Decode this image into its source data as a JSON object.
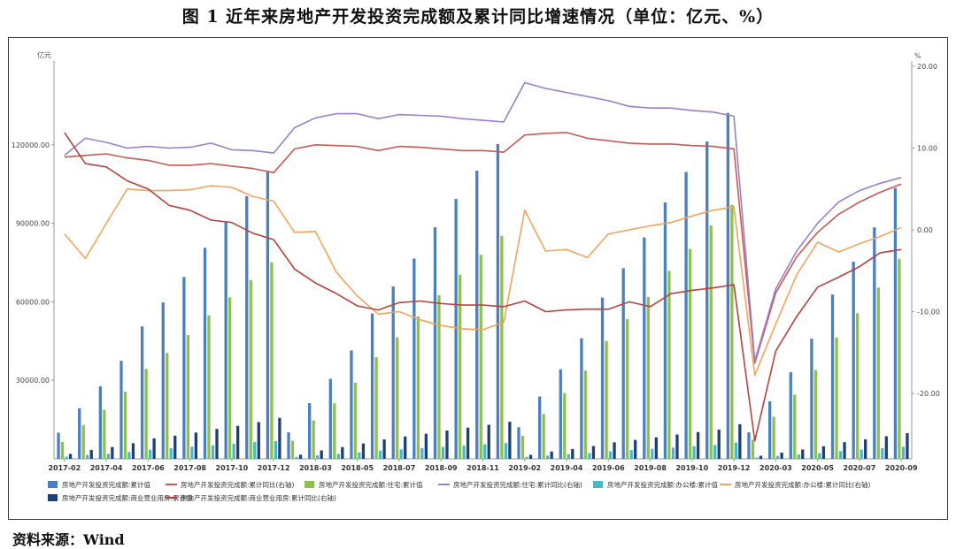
{
  "title": "图 1   近年来房地产开发投资完成额及累计同比增速情况（单位：亿元、%）",
  "source": "资料来源：Wind",
  "chart_data": {
    "type": "bar+line",
    "left_axis_unit": "亿元",
    "right_axis_unit": "%",
    "left_ylim": [
      0,
      150000
    ],
    "left_ticks": [
      "30000.00",
      "60000.00",
      "90000.00",
      "120000.00"
    ],
    "right_ylim": [
      -28,
      20
    ],
    "right_ticks": [
      "-20.00",
      "-10.00",
      "0.00",
      "10.00",
      "20.00"
    ],
    "grid": false,
    "legend_position": "bottom",
    "categories": [
      "2017-02",
      "2017-03",
      "2017-04",
      "2017-05",
      "2017-06",
      "2017-07",
      "2017-08",
      "2017-09",
      "2017-10",
      "2017-11",
      "2017-12",
      "2018-02",
      "2018-03",
      "2018-04",
      "2018-05",
      "2018-06",
      "2018-07",
      "2018-08",
      "2018-09",
      "2018-10",
      "2018-11",
      "2018-12",
      "2019-02",
      "2019-03",
      "2019-04",
      "2019-05",
      "2019-06",
      "2019-07",
      "2019-08",
      "2019-09",
      "2019-10",
      "2019-11",
      "2019-12",
      "2020-02",
      "2020-03",
      "2020-04",
      "2020-05",
      "2020-06",
      "2020-07",
      "2020-08",
      "2020-09"
    ],
    "x_tick_labels": [
      "2017-02",
      "2017-04",
      "2017-06",
      "2017-08",
      "2017-10",
      "2017-12",
      "2018-03",
      "2018-05",
      "2018-07",
      "2018-09",
      "2018-11",
      "2019-02",
      "2019-04",
      "2019-06",
      "2019-08",
      "2019-10",
      "2019-12",
      "2020-03",
      "2020-05",
      "2020-07",
      "2020-09"
    ],
    "bar_series": [
      {
        "name": "房地产开发投资完成额:累计值",
        "color": "#4a7fc1",
        "values": [
          9978,
          19292,
          27732,
          37470,
          50610,
          59761,
          69494,
          80644,
          90544,
          100387,
          109799,
          10115,
          21291,
          30592,
          41420,
          55531,
          65818,
          76519,
          88487,
          99325,
          110083,
          120264,
          12090,
          23803,
          34217,
          46075,
          61609,
          72843,
          84589,
          98008,
          109603,
          121265,
          132194,
          10115,
          21963,
          33103,
          45920,
          62780,
          75325,
          88454,
          103484
        ]
      },
      {
        "name": "房地产开发投资完成额:住宅:累计值",
        "color": "#8dc04c",
        "values": [
          6441,
          12902,
          18755,
          25653,
          34350,
          40483,
          47264,
          54804,
          61669,
          68319,
          75148,
          6926,
          14695,
          21198,
          29053,
          38839,
          46464,
          54428,
          62539,
          70365,
          77910,
          85192,
          8772,
          17147,
          25178,
          33726,
          44995,
          53410,
          61860,
          71800,
          80202,
          89200,
          97071,
          7306,
          16088,
          24533,
          33936,
          46350,
          55649,
          65454,
          76419
        ]
      },
      {
        "name": "房地产开发投资完成额:办公楼:累计值",
        "color": "#4bb8c9",
        "values": [
          863,
          1490,
          1917,
          2597,
          3451,
          4012,
          4620,
          5198,
          5795,
          6383,
          6761,
          730,
          1334,
          1895,
          2457,
          3138,
          3639,
          4117,
          4600,
          5080,
          5518,
          5996,
          707,
          1254,
          1721,
          2185,
          2850,
          3332,
          3824,
          4328,
          4814,
          5300,
          6163,
          510,
          1120,
          1652,
          2187,
          2948,
          3493,
          4082,
          4602
        ]
      },
      {
        "name": "房地产开发投资完成额:商业营业用房:累计值",
        "color": "#1f3f78",
        "values": [
          1870,
          3384,
          4495,
          5960,
          7820,
          8853,
          10030,
          11441,
          12586,
          14040,
          15640,
          1568,
          3226,
          4491,
          5873,
          7395,
          8549,
          9580,
          10808,
          11925,
          13005,
          14177,
          1522,
          2776,
          3752,
          4882,
          6303,
          7219,
          8223,
          9299,
          10227,
          11184,
          13226,
          1164,
          2382,
          3544,
          4811,
          6368,
          7439,
          8645,
          9802
        ]
      }
    ],
    "line_series": [
      {
        "name": "房地产开发投资完成额:累计同比(右轴)",
        "color": "#c85a54",
        "values": [
          8.9,
          9.1,
          9.3,
          8.8,
          8.5,
          7.9,
          7.9,
          8.1,
          7.8,
          7.5,
          7.0,
          9.9,
          10.4,
          10.3,
          10.2,
          9.7,
          10.2,
          10.1,
          9.9,
          9.7,
          9.7,
          9.5,
          11.6,
          11.8,
          11.9,
          11.2,
          10.9,
          10.6,
          10.5,
          10.5,
          10.3,
          10.2,
          9.9,
          -16.3,
          -7.7,
          -3.3,
          -0.3,
          1.9,
          3.4,
          4.6,
          5.6
        ]
      },
      {
        "name": "房地产开发投资完成额:住宅:累计同比(右轴)",
        "color": "#9c7fc7",
        "values": [
          9.1,
          11.2,
          10.7,
          10.0,
          10.2,
          10.0,
          10.1,
          10.6,
          9.8,
          9.7,
          9.4,
          12.5,
          13.7,
          14.2,
          14.2,
          13.6,
          14.1,
          14.0,
          13.9,
          13.6,
          13.4,
          13.2,
          18.0,
          17.3,
          16.8,
          16.3,
          15.8,
          15.1,
          14.9,
          14.9,
          14.6,
          14.4,
          13.9,
          -16.0,
          -7.2,
          -2.6,
          0.8,
          3.4,
          4.8,
          5.7,
          6.4
        ]
      },
      {
        "name": "房地产开发投资完成额:办公楼:累计同比(右轴)",
        "color": "#f2a45e",
        "values": [
          -0.5,
          -3.5,
          0.8,
          5.0,
          4.8,
          4.8,
          4.9,
          5.4,
          5.2,
          4.1,
          3.5,
          -0.3,
          -0.2,
          -5.2,
          -8.1,
          -10.3,
          -10.0,
          -11.0,
          -11.7,
          -12.1,
          -12.2,
          -11.3,
          2.4,
          -2.6,
          -2.4,
          -3.4,
          -0.5,
          0.0,
          0.5,
          0.9,
          1.7,
          2.4,
          2.8,
          -17.8,
          -11.5,
          -5.5,
          -1.5,
          -2.7,
          -1.7,
          -0.8,
          0.3
        ]
      },
      {
        "name": "房地产开发投资完成额:商业营业用房:累计同比(右轴)",
        "color": "#b5433f",
        "values": [
          11.9,
          8.1,
          7.7,
          6.0,
          5.0,
          3.0,
          2.4,
          1.2,
          0.9,
          -0.4,
          -1.2,
          -4.8,
          -6.5,
          -7.8,
          -9.3,
          -9.8,
          -8.9,
          -8.7,
          -9.0,
          -9.2,
          -9.2,
          -9.4,
          -8.7,
          -10.0,
          -9.8,
          -9.7,
          -9.7,
          -8.8,
          -9.4,
          -7.8,
          -7.4,
          -7.1,
          -6.7,
          -25.8,
          -14.8,
          -10.6,
          -7.0,
          -5.8,
          -4.5,
          -2.8,
          -2.4
        ]
      }
    ]
  }
}
